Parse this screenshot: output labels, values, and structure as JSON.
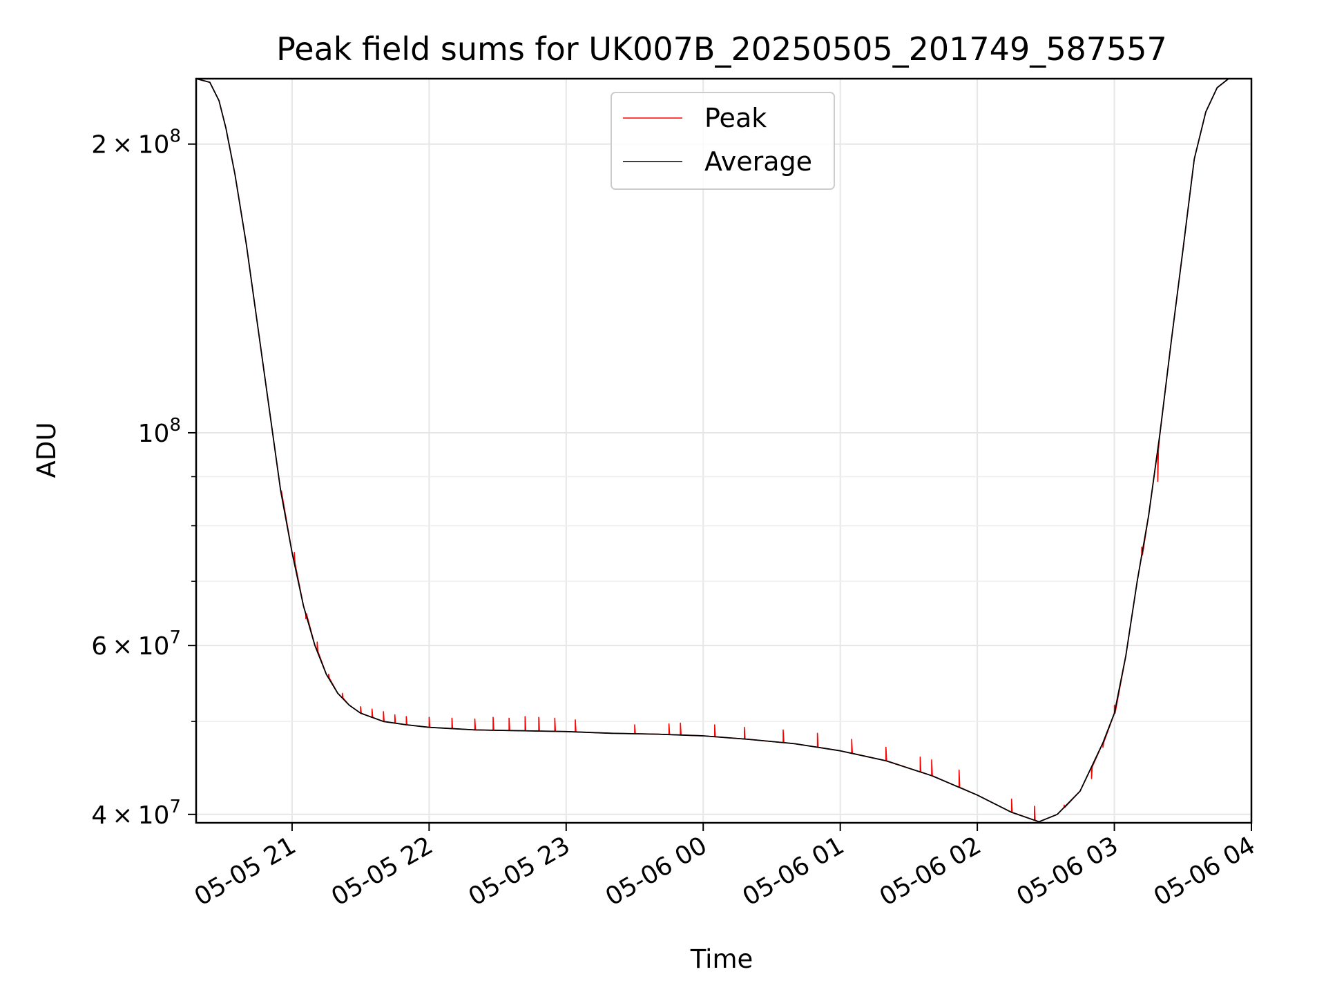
{
  "chart_data": {
    "type": "line",
    "title": "Peak field sums for UK007B_20250505_201749_587557",
    "xlabel": "Time",
    "ylabel": "ADU",
    "y_scale": "log",
    "grid": true,
    "legend_position": "top-center",
    "xlim": [
      "2025-05-05 20:18",
      "2025-05-06 04:00"
    ],
    "ylim": [
      39200000,
      234000000
    ],
    "x_ticks": [
      {
        "value": "2025-05-05 21:00",
        "label": "05-05 21"
      },
      {
        "value": "2025-05-05 22:00",
        "label": "05-05 22"
      },
      {
        "value": "2025-05-05 23:00",
        "label": "05-05 23"
      },
      {
        "value": "2025-05-06 00:00",
        "label": "05-06 00"
      },
      {
        "value": "2025-05-06 01:00",
        "label": "05-06 01"
      },
      {
        "value": "2025-05-06 02:00",
        "label": "05-06 02"
      },
      {
        "value": "2025-05-06 03:00",
        "label": "05-06 03"
      },
      {
        "value": "2025-05-06 04:00",
        "label": "05-06 04"
      }
    ],
    "y_major_ticks": [
      {
        "value": 40000000,
        "mantissa": "4",
        "base": "10",
        "exponent": "7"
      },
      {
        "value": 60000000,
        "mantissa": "6",
        "base": "10",
        "exponent": "7"
      },
      {
        "value": 100000000,
        "mantissa": "",
        "base": "10",
        "exponent": "8"
      },
      {
        "value": 200000000,
        "mantissa": "2",
        "base": "10",
        "exponent": "8"
      }
    ],
    "y_minor_ticks": [
      50000000,
      70000000,
      80000000,
      90000000
    ],
    "series": [
      {
        "name": "Peak",
        "color": "#ff0000",
        "spikes": [
          [
            "2025-05-05 20:55",
            87000000
          ],
          [
            "2025-05-05 21:01",
            75000000
          ],
          [
            "2025-05-05 21:06",
            64000000
          ],
          [
            "2025-05-05 21:11",
            60500000
          ],
          [
            "2025-05-05 21:16",
            56000000
          ],
          [
            "2025-05-05 21:22",
            53500000
          ],
          [
            "2025-05-05 21:30",
            51800000
          ],
          [
            "2025-05-05 21:35",
            51500000
          ],
          [
            "2025-05-05 21:40",
            51200000
          ],
          [
            "2025-05-05 21:45",
            50800000
          ],
          [
            "2025-05-05 21:50",
            50600000
          ],
          [
            "2025-05-05 22:00",
            50500000
          ],
          [
            "2025-05-05 22:10",
            50400000
          ],
          [
            "2025-05-05 22:20",
            50300000
          ],
          [
            "2025-05-05 22:28",
            50500000
          ],
          [
            "2025-05-05 22:35",
            50400000
          ],
          [
            "2025-05-05 22:42",
            50600000
          ],
          [
            "2025-05-05 22:48",
            50500000
          ],
          [
            "2025-05-05 22:55",
            50400000
          ],
          [
            "2025-05-05 23:04",
            50200000
          ],
          [
            "2025-05-05 23:30",
            49600000
          ],
          [
            "2025-05-05 23:45",
            49700000
          ],
          [
            "2025-05-05 23:50",
            49800000
          ],
          [
            "2025-05-06 00:05",
            49600000
          ],
          [
            "2025-05-06 00:18",
            49300000
          ],
          [
            "2025-05-06 00:35",
            49000000
          ],
          [
            "2025-05-06 00:50",
            48600000
          ],
          [
            "2025-05-06 01:05",
            47900000
          ],
          [
            "2025-05-06 01:20",
            47000000
          ],
          [
            "2025-05-06 01:35",
            45900000
          ],
          [
            "2025-05-06 01:40",
            45600000
          ],
          [
            "2025-05-06 01:52",
            44500000
          ],
          [
            "2025-05-06 02:15",
            41500000
          ],
          [
            "2025-05-06 02:25",
            40800000
          ],
          [
            "2025-05-06 02:38",
            40900000
          ],
          [
            "2025-05-06 02:50",
            43600000
          ],
          [
            "2025-05-06 02:55",
            47000000
          ],
          [
            "2025-05-06 03:00",
            52000000
          ],
          [
            "2025-05-06 03:12",
            76000000
          ],
          [
            "2025-05-06 03:19",
            89000000
          ]
        ]
      },
      {
        "name": "Average",
        "color": "#000000",
        "points": [
          [
            "2025-05-05 20:18",
            234000000
          ],
          [
            "2025-05-05 20:24",
            232000000
          ],
          [
            "2025-05-05 20:28",
            222000000
          ],
          [
            "2025-05-05 20:31",
            208000000
          ],
          [
            "2025-05-05 20:35",
            186000000
          ],
          [
            "2025-05-05 20:40",
            157000000
          ],
          [
            "2025-05-05 20:45",
            129000000
          ],
          [
            "2025-05-05 20:50",
            106000000
          ],
          [
            "2025-05-05 20:55",
            87000000
          ],
          [
            "2025-05-05 21:00",
            75000000
          ],
          [
            "2025-05-05 21:05",
            66000000
          ],
          [
            "2025-05-05 21:10",
            60000000
          ],
          [
            "2025-05-05 21:15",
            56000000
          ],
          [
            "2025-05-05 21:20",
            53500000
          ],
          [
            "2025-05-05 21:25",
            52000000
          ],
          [
            "2025-05-05 21:30",
            51000000
          ],
          [
            "2025-05-05 21:40",
            50000000
          ],
          [
            "2025-05-05 21:50",
            49600000
          ],
          [
            "2025-05-05 22:00",
            49300000
          ],
          [
            "2025-05-05 22:20",
            49000000
          ],
          [
            "2025-05-05 22:40",
            48900000
          ],
          [
            "2025-05-05 23:00",
            48800000
          ],
          [
            "2025-05-05 23:20",
            48600000
          ],
          [
            "2025-05-05 23:40",
            48500000
          ],
          [
            "2025-05-06 00:00",
            48300000
          ],
          [
            "2025-05-06 00:20",
            47900000
          ],
          [
            "2025-05-06 00:40",
            47400000
          ],
          [
            "2025-05-06 01:00",
            46600000
          ],
          [
            "2025-05-06 01:20",
            45500000
          ],
          [
            "2025-05-06 01:40",
            43900000
          ],
          [
            "2025-05-06 02:00",
            41900000
          ],
          [
            "2025-05-06 02:15",
            40200000
          ],
          [
            "2025-05-06 02:27",
            39300000
          ],
          [
            "2025-05-06 02:35",
            40000000
          ],
          [
            "2025-05-06 02:45",
            42300000
          ],
          [
            "2025-05-06 02:55",
            47500000
          ],
          [
            "2025-05-06 03:00",
            51000000
          ],
          [
            "2025-05-06 03:05",
            58500000
          ],
          [
            "2025-05-06 03:10",
            70000000
          ],
          [
            "2025-05-06 03:15",
            82000000
          ],
          [
            "2025-05-06 03:20",
            100000000
          ],
          [
            "2025-05-06 03:25",
            125000000
          ],
          [
            "2025-05-06 03:30",
            155000000
          ],
          [
            "2025-05-06 03:35",
            193000000
          ],
          [
            "2025-05-06 03:40",
            216000000
          ],
          [
            "2025-05-06 03:45",
            229000000
          ],
          [
            "2025-05-06 03:50",
            234000000
          ],
          [
            "2025-05-06 04:00",
            234000000
          ]
        ]
      }
    ]
  }
}
